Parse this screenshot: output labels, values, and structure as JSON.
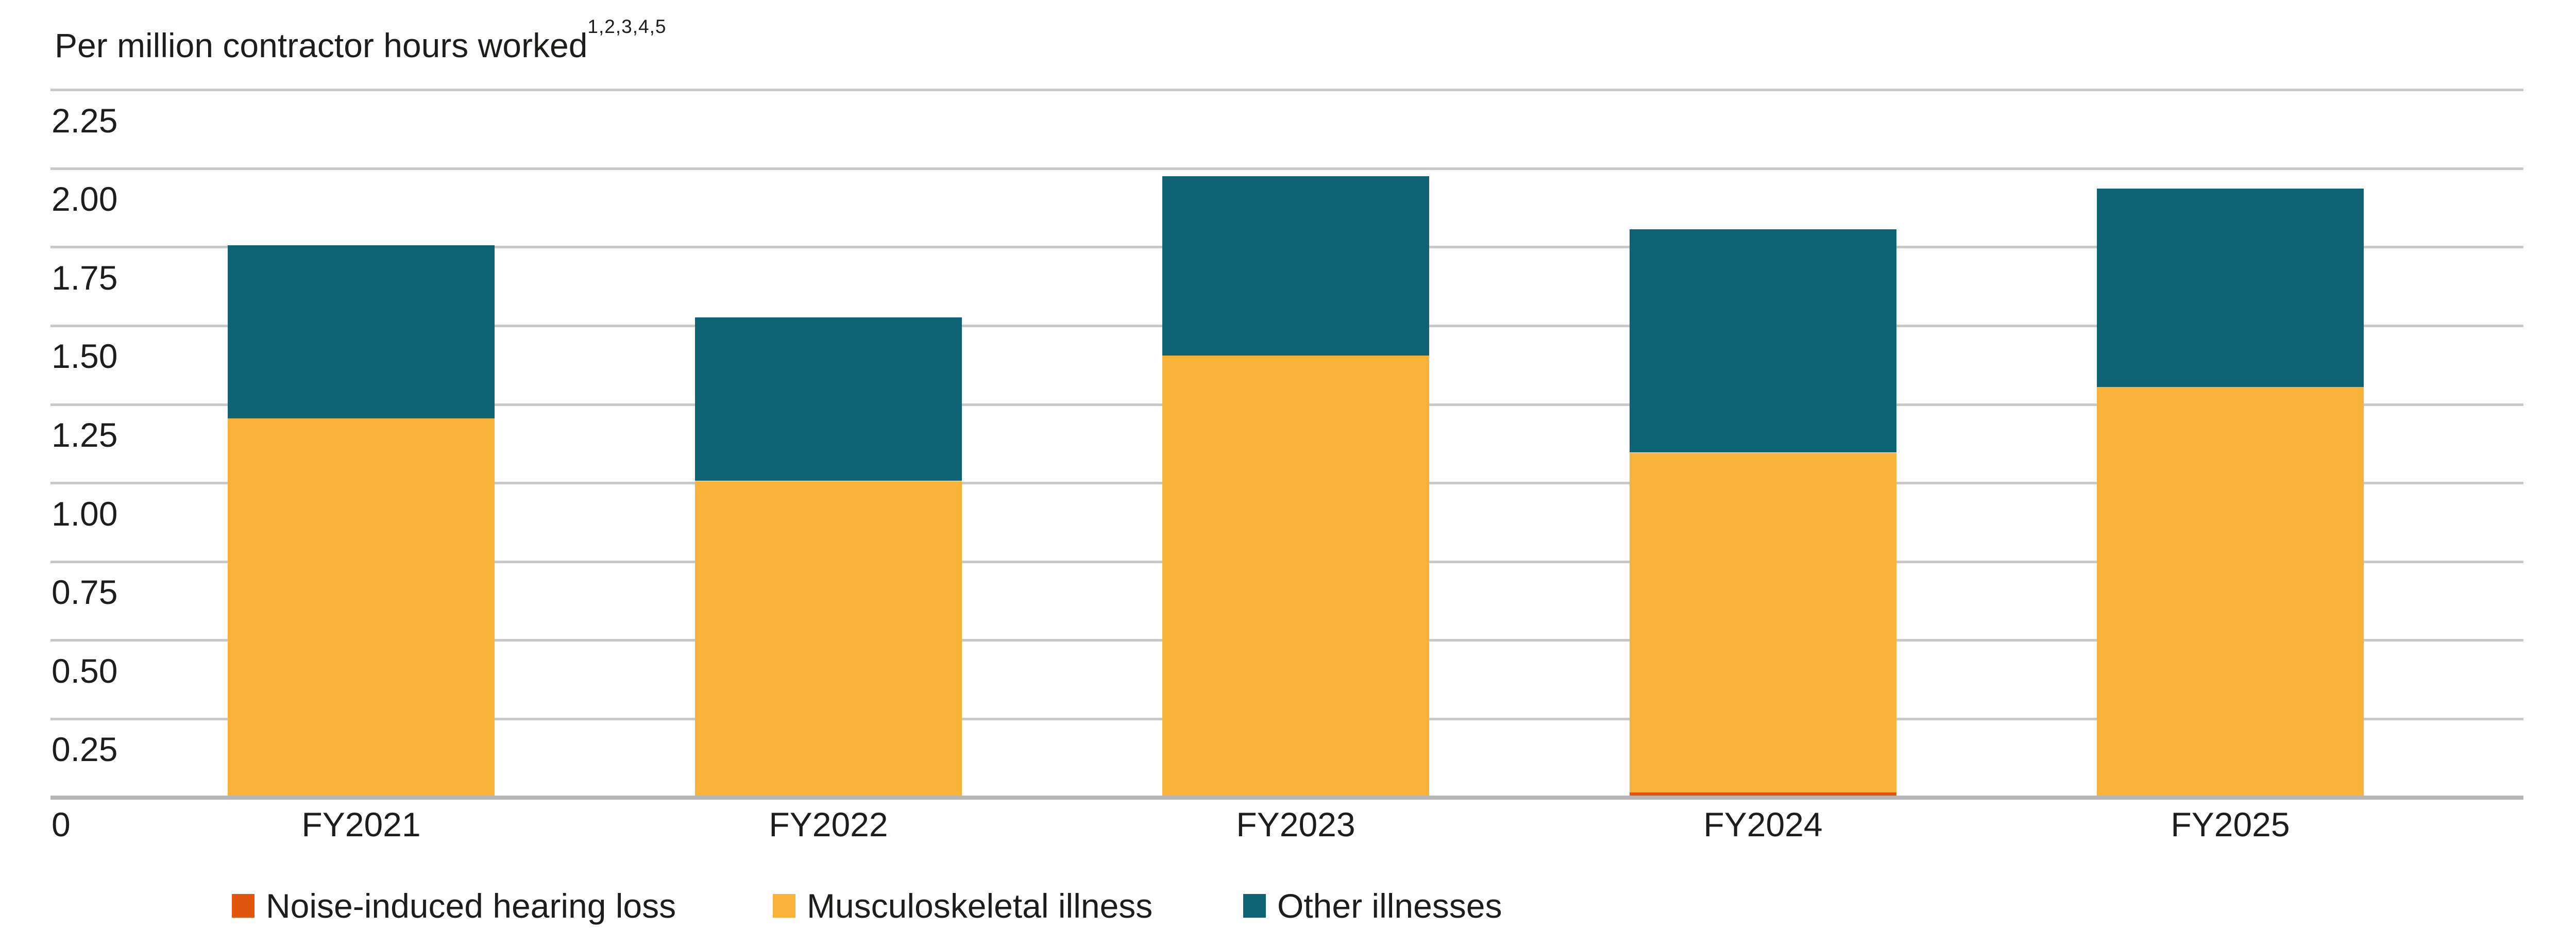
{
  "title": {
    "text": "Per million contractor hours worked",
    "superscript": "1,2,3,4,5"
  },
  "colors": {
    "background": "#FFFFFF",
    "text": "#1D1D1B",
    "gridline": "#C8C8C8",
    "baseline": "#B4B4B4",
    "noise_induced_hearing_loss": "#E1560D",
    "musculoskeletal_illness": "#F7B237",
    "other_illnesses": "#0E6375"
  },
  "chart_data": {
    "type": "bar",
    "stacked": true,
    "title": "Per million contractor hours worked",
    "title_footnote_refs": "1,2,3,4,5",
    "categories": [
      "FY2021",
      "FY2022",
      "FY2023",
      "FY2024",
      "FY2025"
    ],
    "series": [
      {
        "name": "Noise-induced hearing loss",
        "color": "#E1560D",
        "values": [
          0,
          0,
          0,
          0.01,
          0
        ]
      },
      {
        "name": "Musculoskeletal illness",
        "color": "#F7B237",
        "values": [
          1.2,
          1.0,
          1.4,
          1.08,
          1.3
        ]
      },
      {
        "name": "Other illnesses",
        "color": "#0E6375",
        "values": [
          0.55,
          0.52,
          0.57,
          0.71,
          0.63
        ]
      }
    ],
    "totals": [
      1.75,
      1.52,
      1.97,
      1.8,
      1.93
    ],
    "xlabel": "",
    "ylabel": "Per million contractor hours worked",
    "ylim": [
      0,
      2.35
    ],
    "y_ticks": [
      {
        "value": 0,
        "label": "0"
      },
      {
        "value": 0.25,
        "label": "0.25"
      },
      {
        "value": 0.5,
        "label": "0.50"
      },
      {
        "value": 0.75,
        "label": "0.75"
      },
      {
        "value": 1.0,
        "label": "1.00"
      },
      {
        "value": 1.25,
        "label": "1.25"
      },
      {
        "value": 1.5,
        "label": "1.50"
      },
      {
        "value": 1.75,
        "label": "1.75"
      },
      {
        "value": 2.0,
        "label": "2.00"
      },
      {
        "value": 2.25,
        "label": "2.25"
      }
    ],
    "grid": "horizontal",
    "legend_position": "bottom"
  }
}
